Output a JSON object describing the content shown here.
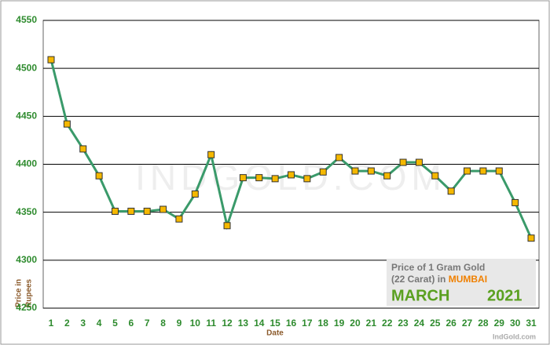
{
  "chart_data": {
    "type": "line",
    "categories": [
      "1",
      "2",
      "3",
      "4",
      "5",
      "6",
      "7",
      "8",
      "9",
      "10",
      "11",
      "12",
      "13",
      "14",
      "15",
      "16",
      "17",
      "18",
      "19",
      "20",
      "21",
      "22",
      "23",
      "24",
      "25",
      "26",
      "27",
      "28",
      "29",
      "30",
      "31"
    ],
    "series": [
      {
        "name": "Price",
        "color": "#3a9a6a",
        "marker_color": "#f5b800",
        "values": [
          4509,
          4442,
          4416,
          4388,
          4351,
          4351,
          4351,
          4353,
          4343,
          4369,
          4410,
          4336,
          4386,
          4386,
          4385,
          4389,
          4385,
          4392,
          4407,
          4393,
          4393,
          4388,
          4402,
          4402,
          4388,
          4372,
          4393,
          4393,
          4393,
          4360,
          4323
        ]
      }
    ],
    "ylim": [
      4250,
      4550
    ],
    "yticks": [
      4250,
      4300,
      4350,
      4400,
      4450,
      4500,
      4550
    ],
    "grid": true,
    "x_label": "Date",
    "y_label": [
      "Price in",
      "Rupees"
    ],
    "watermark": "INDGOLD.COM",
    "info": {
      "line1": "Price of 1 Gram Gold",
      "line2": "(22 Carat) in",
      "city": "MUMBAI",
      "month": "MARCH",
      "year": "2021"
    },
    "source": "IndGold.com"
  }
}
